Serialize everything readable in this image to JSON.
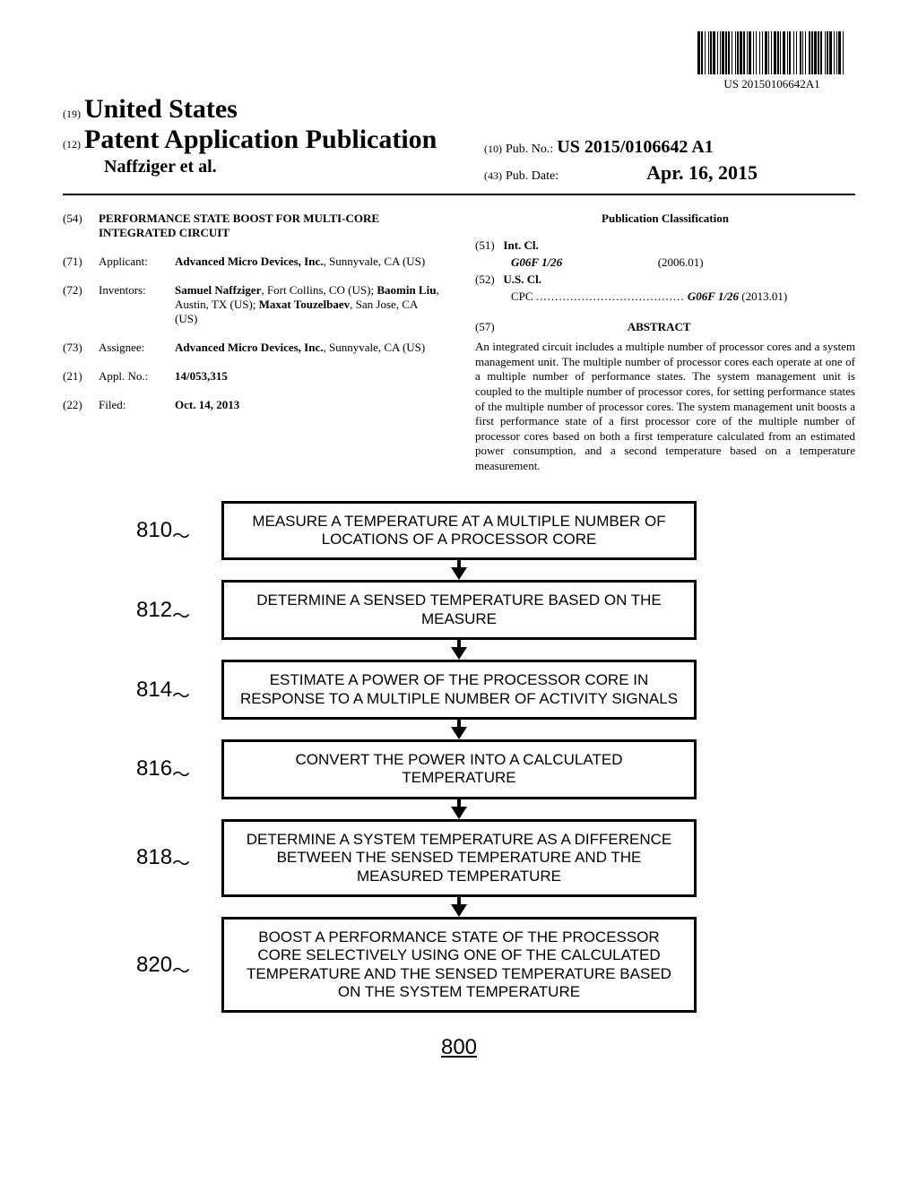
{
  "barcode_text": "US 20150106642A1",
  "header": {
    "prefix19": "(19)",
    "country": "United States",
    "prefix12": "(12)",
    "pub_title": "Patent Application Publication",
    "authors": "Naffziger et al.",
    "prefix10": "(10)",
    "pub_no_label": "Pub. No.:",
    "pub_no": "US 2015/0106642 A1",
    "prefix43": "(43)",
    "pub_date_label": "Pub. Date:",
    "pub_date": "Apr. 16, 2015"
  },
  "left_col": {
    "f54": {
      "num": "(54)",
      "title": "PERFORMANCE STATE BOOST FOR MULTI-CORE INTEGRATED CIRCUIT"
    },
    "f71": {
      "num": "(71)",
      "label": "Applicant:",
      "body": "Advanced Micro Devices, Inc., Sunnyvale, CA (US)"
    },
    "f72": {
      "num": "(72)",
      "label": "Inventors:",
      "body": "Samuel Naffziger, Fort Collins, CO (US); Baomin Liu, Austin, TX (US); Maxat Touzelbaev, San Jose, CA (US)"
    },
    "f73": {
      "num": "(73)",
      "label": "Assignee:",
      "body": "Advanced Micro Devices, Inc., Sunnyvale, CA (US)"
    },
    "f21": {
      "num": "(21)",
      "label": "Appl. No.:",
      "body": "14/053,315"
    },
    "f22": {
      "num": "(22)",
      "label": "Filed:",
      "body": "Oct. 14, 2013"
    }
  },
  "right_col": {
    "classification_title": "Publication Classification",
    "f51": {
      "num": "(51)",
      "label": "Int. Cl.",
      "code": "G06F 1/26",
      "year": "(2006.01)"
    },
    "f52": {
      "num": "(52)",
      "label": "U.S. Cl.",
      "cpc_label": "CPC",
      "dots": ".......................................",
      "code": "G06F 1/26",
      "year": "(2013.01)"
    },
    "f57": {
      "num": "(57)",
      "title": "ABSTRACT"
    },
    "abstract": "An integrated circuit includes a multiple number of processor cores and a system management unit. The multiple number of processor cores each operate at one of a multiple number of performance states. The system management unit is coupled to the multiple number of processor cores, for setting performance states of the multiple number of processor cores. The system management unit boosts a first performance state of a first processor core of the multiple number of processor cores based on both a first temperature calculated from an estimated power consumption, and a second temperature based on a temperature measurement."
  },
  "flowchart": {
    "steps": [
      {
        "label": "810",
        "text": "MEASURE A TEMPERATURE AT A MULTIPLE NUMBER OF LOCATIONS OF A PROCESSOR CORE"
      },
      {
        "label": "812",
        "text": "DETERMINE A SENSED TEMPERATURE BASED ON THE MEASURE"
      },
      {
        "label": "814",
        "text": "ESTIMATE A POWER OF THE PROCESSOR CORE IN RESPONSE TO A MULTIPLE NUMBER OF ACTIVITY SIGNALS"
      },
      {
        "label": "816",
        "text": "CONVERT THE POWER INTO A CALCULATED TEMPERATURE"
      },
      {
        "label": "818",
        "text": "DETERMINE A SYSTEM TEMPERATURE AS A DIFFERENCE BETWEEN THE SENSED TEMPERATURE AND THE MEASURED TEMPERATURE"
      },
      {
        "label": "820",
        "text": "BOOST A PERFORMANCE STATE OF THE PROCESSOR CORE SELECTIVELY USING ONE OF THE CALCULATED TEMPERATURE AND THE SENSED TEMPERATURE BASED ON THE SYSTEM TEMPERATURE"
      }
    ],
    "figure_number": "800"
  },
  "barcode_widths": [
    3,
    1,
    2,
    2,
    1,
    3,
    1,
    1,
    2,
    1,
    3,
    2,
    1,
    2,
    1,
    1,
    3,
    1,
    2,
    1,
    2,
    2,
    1,
    3,
    1,
    1,
    2,
    1,
    3,
    1,
    2,
    2,
    1,
    1,
    3,
    2,
    1,
    2,
    1,
    3,
    1,
    2,
    1,
    2,
    3,
    1,
    1,
    2,
    1,
    2,
    3,
    1,
    2,
    1,
    1,
    2,
    3,
    2,
    1,
    1,
    2,
    3,
    1,
    2,
    1,
    3,
    2,
    1,
    1,
    2,
    1,
    3,
    2,
    1,
    2,
    1,
    3,
    1,
    2,
    1,
    2,
    3,
    1,
    1,
    2,
    1,
    3,
    2,
    1,
    2,
    1,
    1,
    3,
    2,
    1,
    3
  ]
}
